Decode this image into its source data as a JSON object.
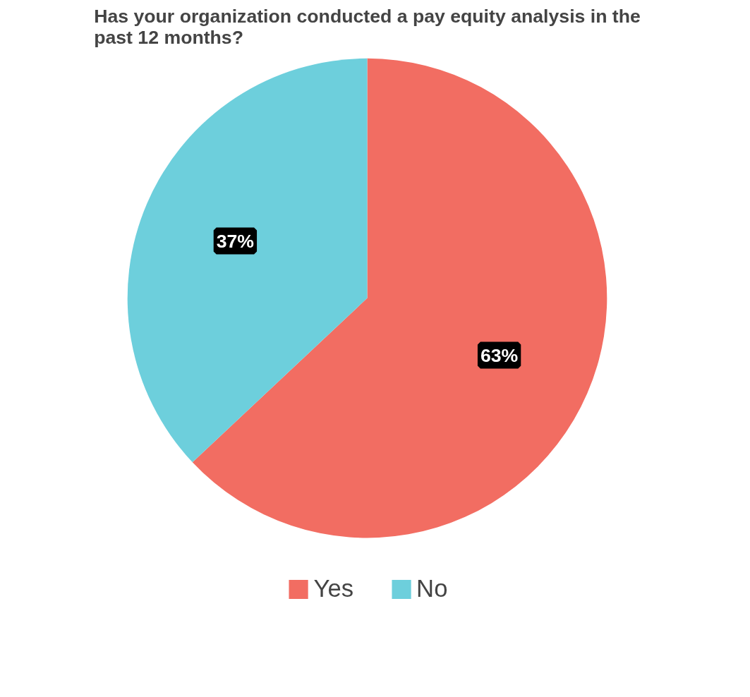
{
  "chart_data": {
    "type": "pie",
    "title": "Has your organization conducted a pay equity analysis in the past 12 months?",
    "categories": [
      "Yes",
      "No"
    ],
    "values": [
      63,
      37
    ],
    "colors": [
      "#f26d62",
      "#6dcfdc"
    ],
    "value_labels": [
      "63%",
      "37%"
    ],
    "legend": "bottom"
  }
}
